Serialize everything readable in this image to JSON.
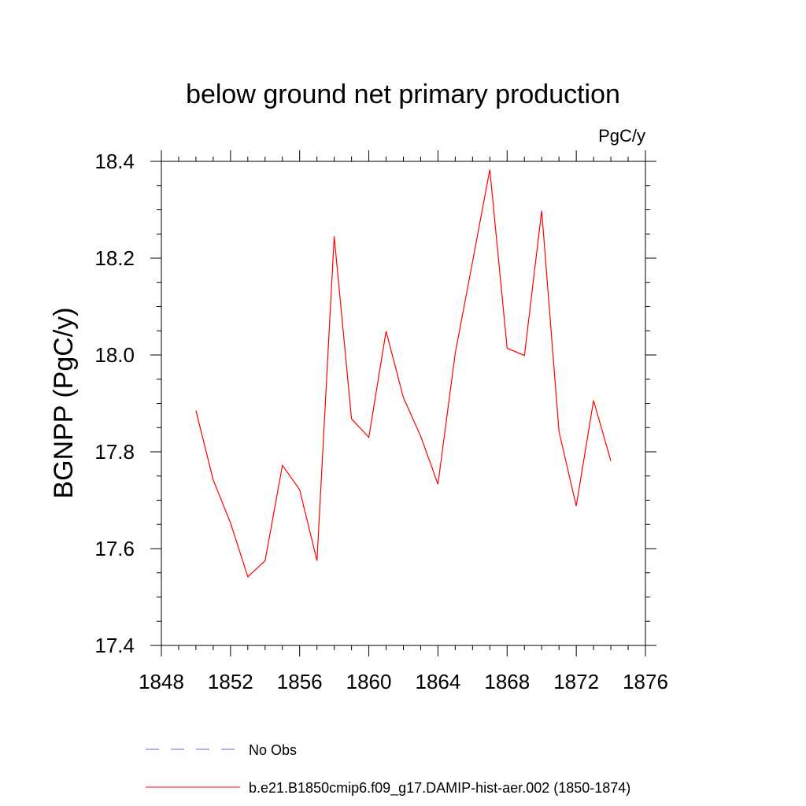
{
  "chart_data": {
    "type": "line",
    "title": "below ground net primary production",
    "units": "PgC/y",
    "ylabel": "BGNPP  (PgC/y)",
    "xlabel": "",
    "xlim": [
      1848,
      1876
    ],
    "ylim": [
      17.4,
      18.4
    ],
    "x_ticks": [
      1848,
      1852,
      1856,
      1860,
      1864,
      1868,
      1872,
      1876
    ],
    "x_tick_labels": [
      "1848",
      "1852",
      "1856",
      "1860",
      "1864",
      "1868",
      "1872",
      "1876"
    ],
    "y_ticks": [
      17.4,
      17.6,
      17.8,
      18.0,
      18.2,
      18.4
    ],
    "y_tick_labels": [
      "17.4",
      "17.6",
      "17.8",
      "18.0",
      "18.2",
      "18.4"
    ],
    "grid": false,
    "legend_position": "bottom",
    "series": [
      {
        "name": "b.e21.B1850cmip6.f09_g17.DAMIP-hist-aer.002 (1850-1874)",
        "color": "#ff0000",
        "style": "solid",
        "x": [
          1850,
          1851,
          1852,
          1853,
          1854,
          1855,
          1856,
          1857,
          1858,
          1859,
          1860,
          1861,
          1862,
          1863,
          1864,
          1865,
          1866,
          1867,
          1868,
          1869,
          1870,
          1871,
          1872,
          1873,
          1874
        ],
        "y": [
          17.885,
          17.742,
          17.653,
          17.542,
          17.575,
          17.772,
          17.722,
          17.575,
          18.245,
          17.868,
          17.83,
          18.049,
          17.912,
          17.832,
          17.733,
          18.004,
          18.193,
          18.383,
          18.014,
          17.999,
          18.298,
          17.842,
          17.688,
          17.906,
          17.781
        ]
      }
    ],
    "legend": [
      {
        "label": "No Obs",
        "color": "#6666cc",
        "style": "dashed"
      },
      {
        "label": "b.e21.B1850cmip6.f09_g17.DAMIP-hist-aer.002 (1850-1874)",
        "color": "#ff0000",
        "style": "solid"
      }
    ]
  }
}
